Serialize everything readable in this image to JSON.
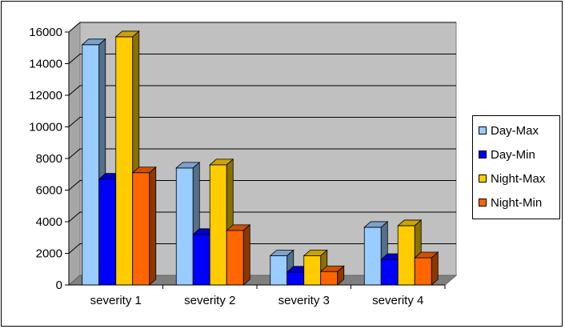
{
  "chart_data": {
    "type": "bar",
    "categories": [
      "severity 1",
      "severity 2",
      "severity 3",
      "severity 4"
    ],
    "series": [
      {
        "name": "Day-Max",
        "values": [
          15200,
          7400,
          1850,
          3650
        ],
        "color": "#99ccff"
      },
      {
        "name": "Day-Min",
        "values": [
          6700,
          3200,
          820,
          1620
        ],
        "color": "#0000ff"
      },
      {
        "name": "Night-Max",
        "values": [
          15700,
          7600,
          1850,
          3750
        ],
        "color": "#ffcc00"
      },
      {
        "name": "Night-Min",
        "values": [
          7100,
          3450,
          850,
          1720
        ],
        "color": "#ff6600"
      }
    ],
    "ylim": [
      0,
      16000
    ],
    "yticks": [
      "0",
      "2000",
      "4000",
      "6000",
      "8000",
      "10000",
      "12000",
      "14000",
      "16000"
    ],
    "grid": true,
    "legend": "right",
    "wall_color": "#c0c0c0",
    "title": "",
    "xlabel": "",
    "ylabel": ""
  }
}
